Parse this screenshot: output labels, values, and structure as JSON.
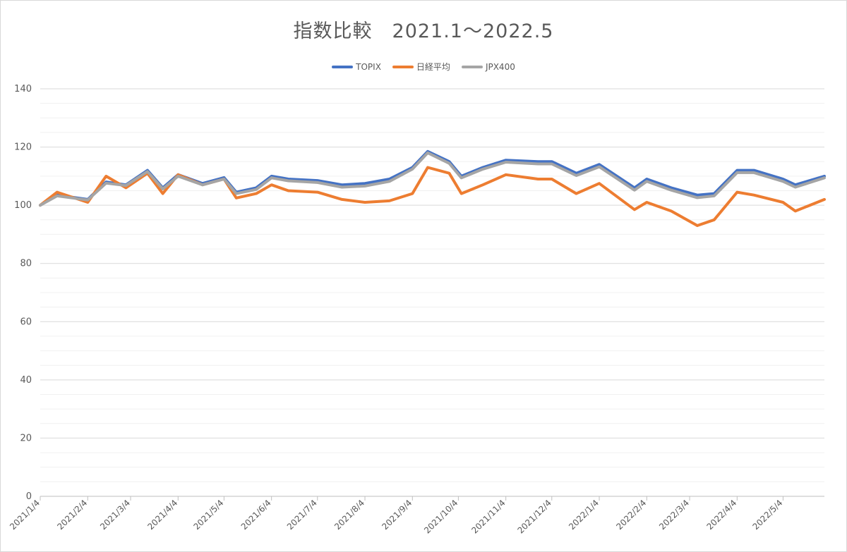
{
  "chart_data": {
    "type": "line",
    "title": "指数比較　2021.1～2022.5",
    "xlabel": "",
    "ylabel": "",
    "ylim": [
      0,
      140
    ],
    "yticks": [
      0,
      20,
      40,
      60,
      80,
      100,
      120,
      140
    ],
    "grid": true,
    "legend": "top",
    "x_tick_labels": [
      "2021/1/4",
      "2021/2/4",
      "2021/3/4",
      "2021/4/4",
      "2021/5/4",
      "2021/6/4",
      "2021/7/4",
      "2021/8/4",
      "2021/9/4",
      "2021/10/4",
      "2021/11/4",
      "2021/12/4",
      "2022/1/4",
      "2022/2/4",
      "2022/3/4",
      "2022/4/4",
      "2022/5/4"
    ],
    "x": [
      "2021/1/4",
      "2021/1/15",
      "2021/2/4",
      "2021/2/16",
      "2021/3/1",
      "2021/3/15",
      "2021/3/25",
      "2021/4/4",
      "2021/4/20",
      "2021/5/4",
      "2021/5/12",
      "2021/5/25",
      "2021/6/4",
      "2021/6/15",
      "2021/7/4",
      "2021/7/20",
      "2021/8/4",
      "2021/8/20",
      "2021/9/4",
      "2021/9/14",
      "2021/9/28",
      "2021/10/6",
      "2021/10/20",
      "2021/11/4",
      "2021/11/25",
      "2021/12/4",
      "2021/12/20",
      "2022/1/4",
      "2022/1/27",
      "2022/2/4",
      "2022/2/20",
      "2022/3/9",
      "2022/3/20",
      "2022/4/4",
      "2022/4/15",
      "2022/5/4",
      "2022/5/12",
      "2022/5/31"
    ],
    "series": [
      {
        "name": "TOPIX",
        "color": "#4472c4",
        "values": [
          100,
          103.5,
          102,
          108,
          107,
          112,
          106,
          110.5,
          107.5,
          109.5,
          104.5,
          106,
          110,
          109,
          108.5,
          107,
          107.5,
          109,
          113,
          118.5,
          115,
          110,
          113,
          115.5,
          115,
          115,
          111,
          114,
          106,
          109,
          106,
          103.5,
          104,
          112,
          112,
          109,
          107,
          110
        ]
      },
      {
        "name": "日経平均",
        "color": "#ed7d31",
        "values": [
          100,
          104.5,
          101,
          110,
          106,
          111,
          104,
          110.5,
          107,
          109,
          102.5,
          104,
          107,
          105,
          104.5,
          102,
          101,
          101.5,
          104,
          113,
          111,
          104,
          107,
          110.5,
          109,
          109,
          104,
          107.5,
          98.5,
          101,
          98,
          93,
          95,
          104.5,
          103.5,
          101,
          98,
          102
        ]
      },
      {
        "name": "JPX400",
        "color": "#a5a5a5",
        "values": [
          100,
          103.2,
          101.8,
          107.6,
          106.8,
          111.6,
          105.6,
          110,
          107,
          109,
          104,
          105.4,
          109.4,
          108.4,
          107.8,
          106.2,
          106.6,
          108.2,
          112.4,
          118,
          114.4,
          109.4,
          112.4,
          114.8,
          114.2,
          114.2,
          110.2,
          113.2,
          105.2,
          108.2,
          105.2,
          102.6,
          103.2,
          111.2,
          111.2,
          108.2,
          106.2,
          109.4
        ]
      }
    ]
  }
}
